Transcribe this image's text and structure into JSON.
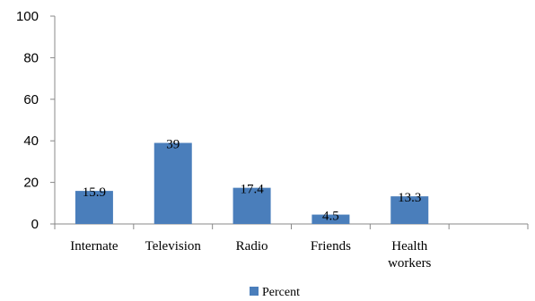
{
  "chart_data": {
    "type": "bar",
    "categories": [
      "Internate",
      "Television",
      "Radio",
      "Friends",
      "Health workers"
    ],
    "category_lines": [
      [
        "Internate"
      ],
      [
        "Television"
      ],
      [
        "Radio"
      ],
      [
        "Friends"
      ],
      [
        "Health",
        "workers"
      ]
    ],
    "series": [
      {
        "name": "Percent",
        "values": [
          15.9,
          39,
          17.4,
          4.5,
          13.3
        ],
        "color": "#4a7ebb"
      }
    ],
    "value_labels": [
      "15.9",
      "39",
      "17.4",
      "4.5",
      "13.3"
    ],
    "yticks": [
      0,
      20,
      40,
      60,
      80,
      100
    ],
    "ylim": [
      0,
      100
    ],
    "grid": false,
    "legend": {
      "position": "bottom",
      "label": "Percent"
    },
    "axis_color": "#888888"
  }
}
